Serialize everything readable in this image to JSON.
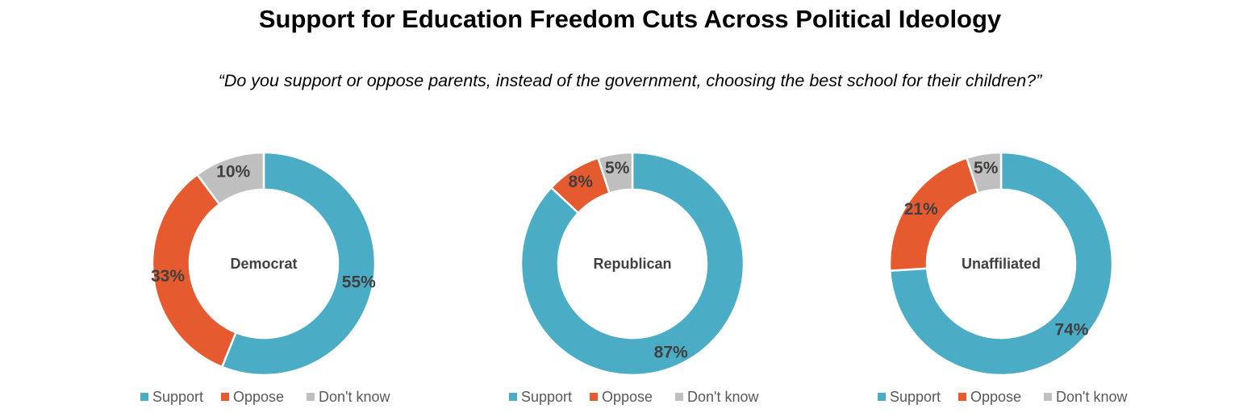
{
  "title": "Support for Education Freedom Cuts Across Political Ideology",
  "subtitle": "“Do you support or oppose parents, instead of the government, choosing the best school for their children?”",
  "colors": {
    "support": "#4BACC6",
    "oppose": "#E55A2E",
    "dont_know": "#BFBFBF",
    "label": "#404040",
    "legend": "#595959"
  },
  "chart_data": [
    {
      "type": "pie",
      "center_label": "Democrat",
      "categories": [
        "Support",
        "Oppose",
        "Don't know"
      ],
      "values": [
        55,
        33,
        10
      ],
      "value_labels": [
        "55%",
        "33%",
        "10%"
      ],
      "legend": [
        "Support",
        "Oppose",
        "Don't know"
      ],
      "legend_position": "bottom"
    },
    {
      "type": "pie",
      "center_label": "Republican",
      "categories": [
        "Support",
        "Oppose",
        "Don't know"
      ],
      "values": [
        87,
        8,
        5
      ],
      "value_labels": [
        "87%",
        "8%",
        "5%"
      ],
      "legend": [
        "Support",
        "Oppose",
        "Don't know"
      ],
      "legend_position": "bottom"
    },
    {
      "type": "pie",
      "center_label": "Unaffiliated",
      "categories": [
        "Support",
        "Oppose",
        "Don't know"
      ],
      "values": [
        74,
        21,
        5
      ],
      "value_labels": [
        "74%",
        "21%",
        "5%"
      ],
      "legend": [
        "Support",
        "Oppose",
        "Don't know"
      ],
      "legend_position": "bottom"
    }
  ]
}
